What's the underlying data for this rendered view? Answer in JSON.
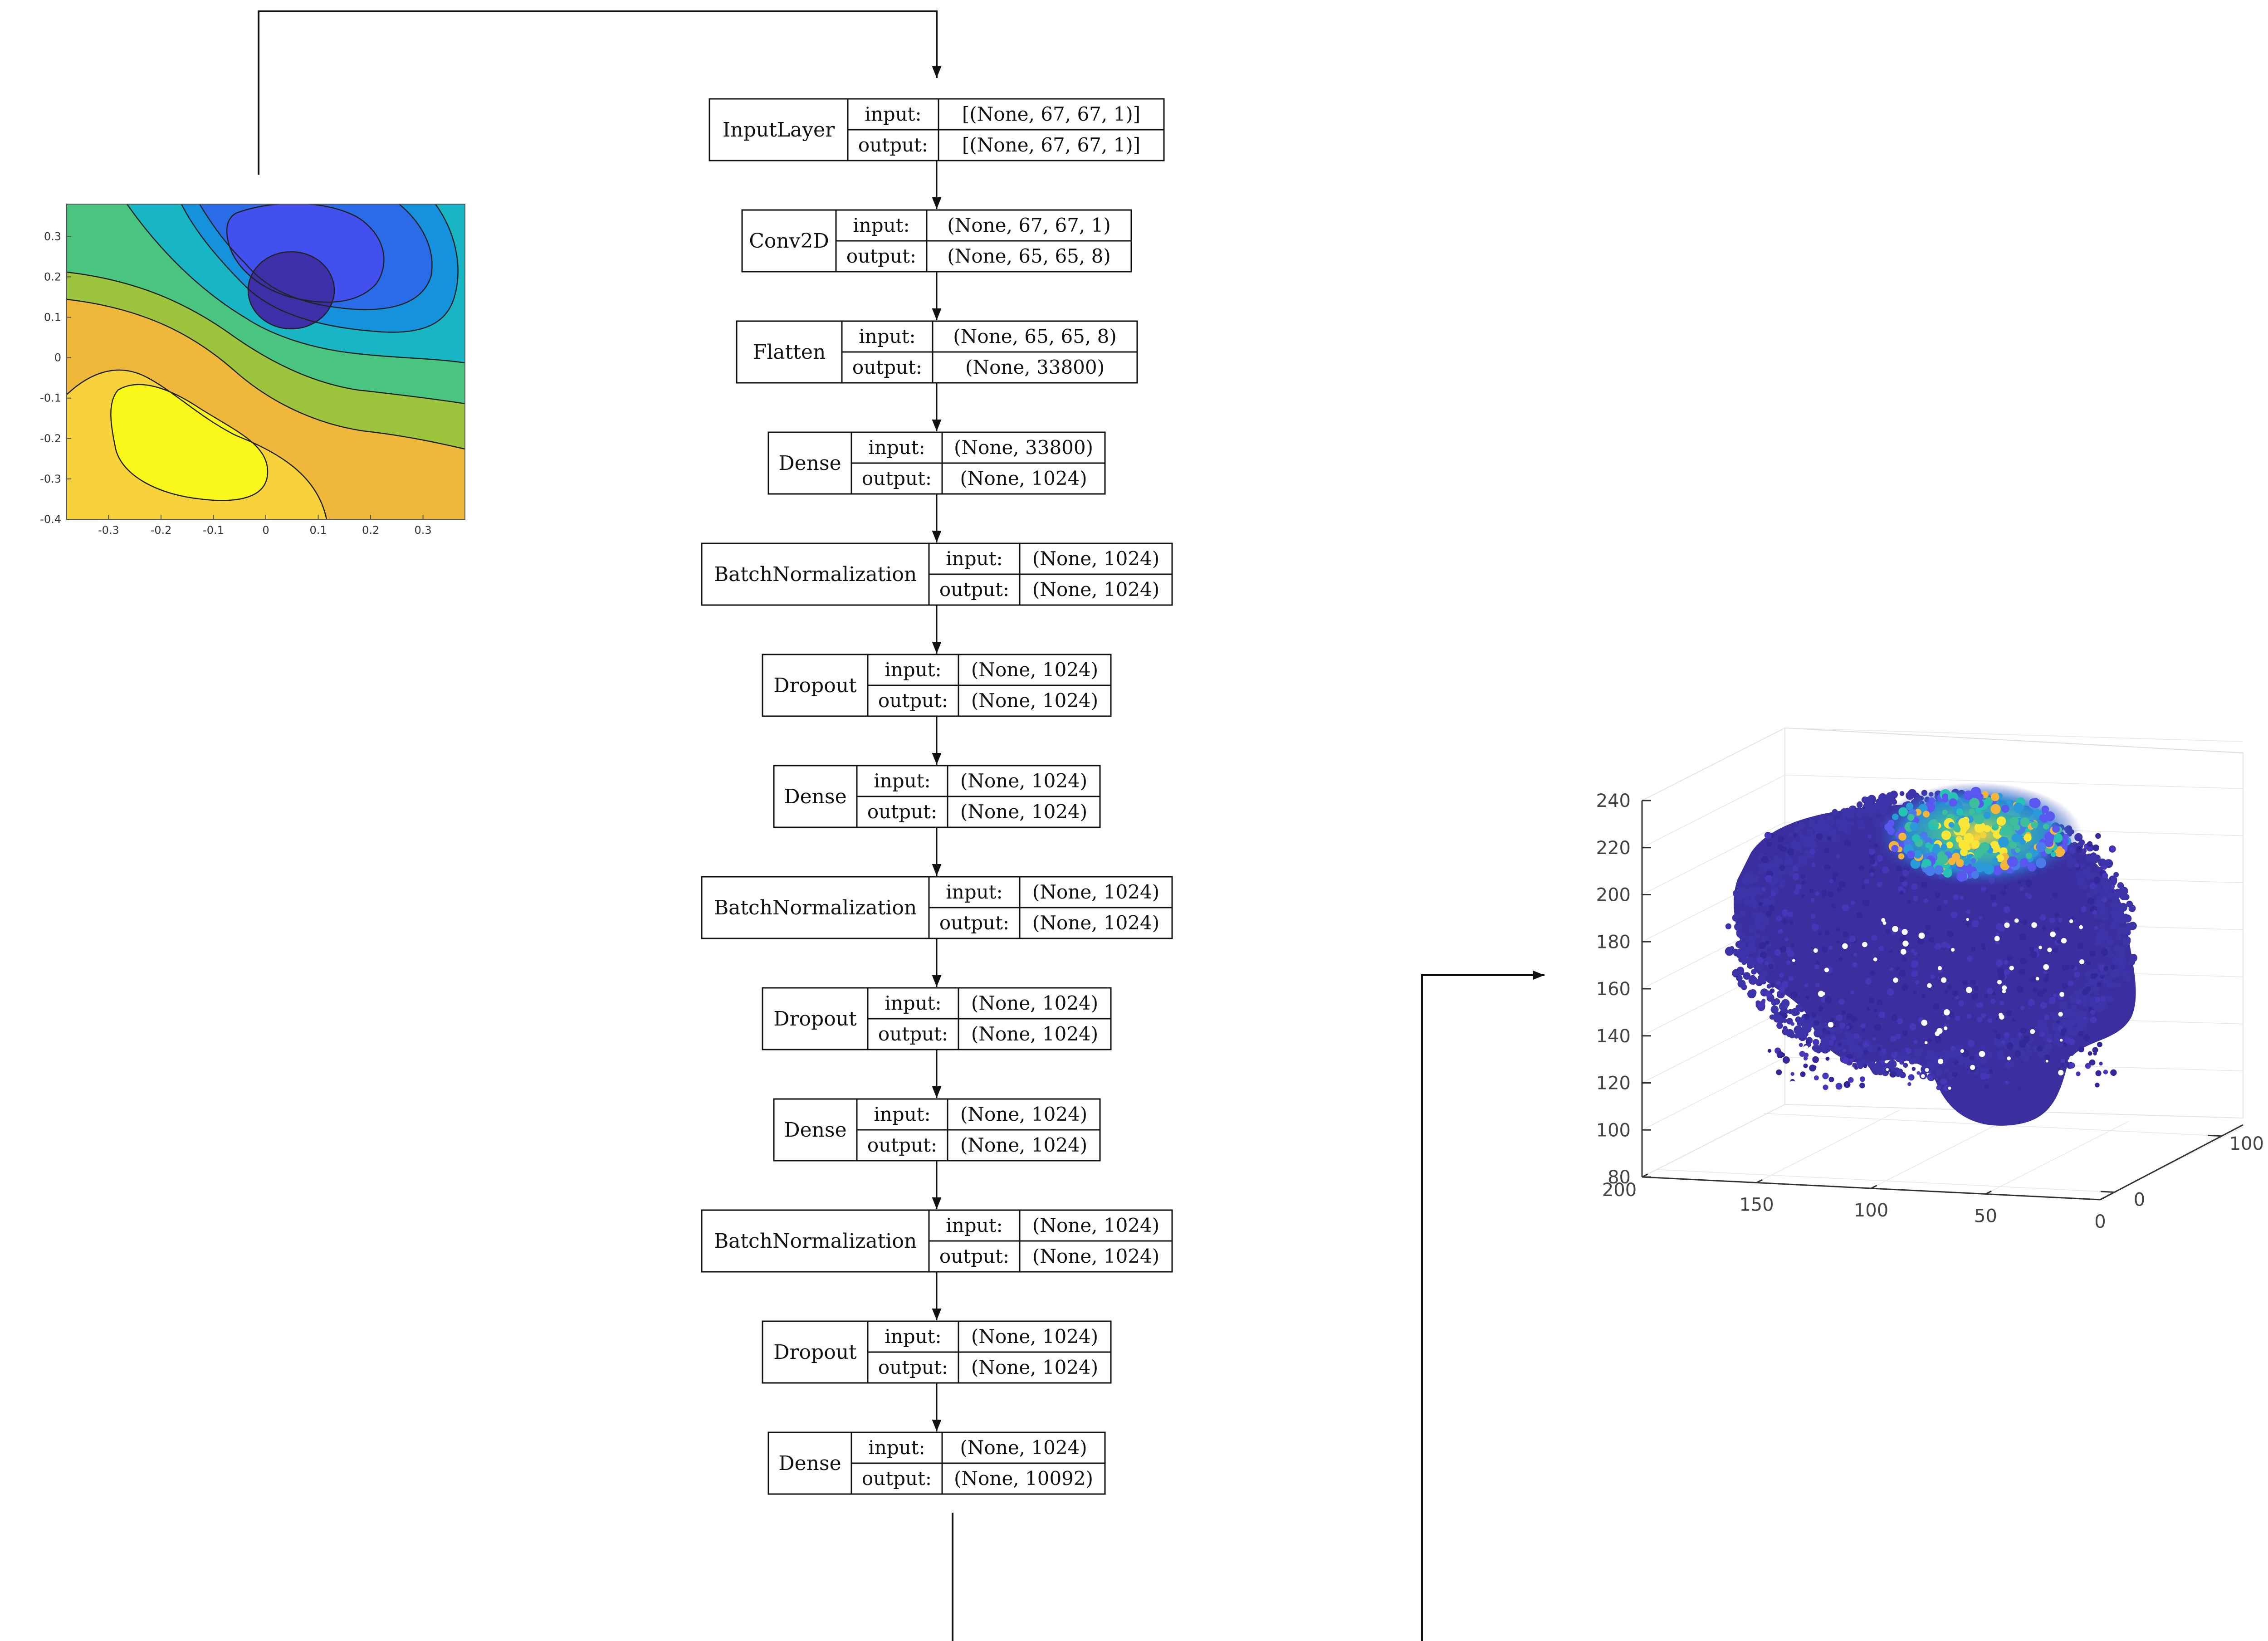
{
  "network": {
    "layers": [
      {
        "name": "InputLayer",
        "input": "[(None, 67, 67, 1)]",
        "output": "[(None, 67, 67, 1)]"
      },
      {
        "name": "Conv2D",
        "input": "(None, 67, 67, 1)",
        "output": "(None, 65, 65, 8)"
      },
      {
        "name": "Flatten",
        "input": "(None, 65, 65, 8)",
        "output": "(None, 33800)"
      },
      {
        "name": "Dense",
        "input": "(None, 33800)",
        "output": "(None, 1024)"
      },
      {
        "name": "BatchNormalization",
        "input": "(None, 1024)",
        "output": "(None, 1024)"
      },
      {
        "name": "Dropout",
        "input": "(None, 1024)",
        "output": "(None, 1024)"
      },
      {
        "name": "Dense",
        "input": "(None, 1024)",
        "output": "(None, 1024)"
      },
      {
        "name": "BatchNormalization",
        "input": "(None, 1024)",
        "output": "(None, 1024)"
      },
      {
        "name": "Dropout",
        "input": "(None, 1024)",
        "output": "(None, 1024)"
      },
      {
        "name": "Dense",
        "input": "(None, 1024)",
        "output": "(None, 1024)"
      },
      {
        "name": "BatchNormalization",
        "input": "(None, 1024)",
        "output": "(None, 1024)"
      },
      {
        "name": "Dropout",
        "input": "(None, 1024)",
        "output": "(None, 1024)"
      },
      {
        "name": "Dense",
        "input": "(None, 1024)",
        "output": "(None, 10092)"
      }
    ],
    "input_label": "input:",
    "output_label": "output:"
  },
  "chart_data": [
    {
      "type": "heatmap",
      "subtype": "filled-contour",
      "title": "",
      "xlabel": "",
      "ylabel": "",
      "xlim": [
        -0.38,
        0.38
      ],
      "ylim": [
        -0.4,
        0.38
      ],
      "xticks": [
        "-0.3",
        "-0.2",
        "-0.1",
        "0",
        "0.1",
        "0.2",
        "0.3"
      ],
      "yticks": [
        "0.3",
        "0.2",
        "0.1",
        "0",
        "-0.1",
        "-0.2",
        "-0.3",
        "-0.4"
      ],
      "colormap": "parula",
      "extrema": [
        {
          "kind": "minimum",
          "x": 0.05,
          "y": 0.17
        },
        {
          "kind": "maximum",
          "x": -0.17,
          "y": -0.22
        }
      ]
    },
    {
      "type": "scatter",
      "subtype": "3d-point-cloud",
      "title": "",
      "xlabel": "",
      "ylabel": "",
      "zlabel": "",
      "xticks": [
        "200",
        "150",
        "100",
        "50",
        "0"
      ],
      "yticks": [
        "0",
        "100"
      ],
      "zticks": [
        "80",
        "100",
        "120",
        "140",
        "160",
        "180",
        "200",
        "220",
        "240"
      ],
      "zlim": [
        80,
        240
      ],
      "colormap": "parula",
      "grid": true
    }
  ]
}
